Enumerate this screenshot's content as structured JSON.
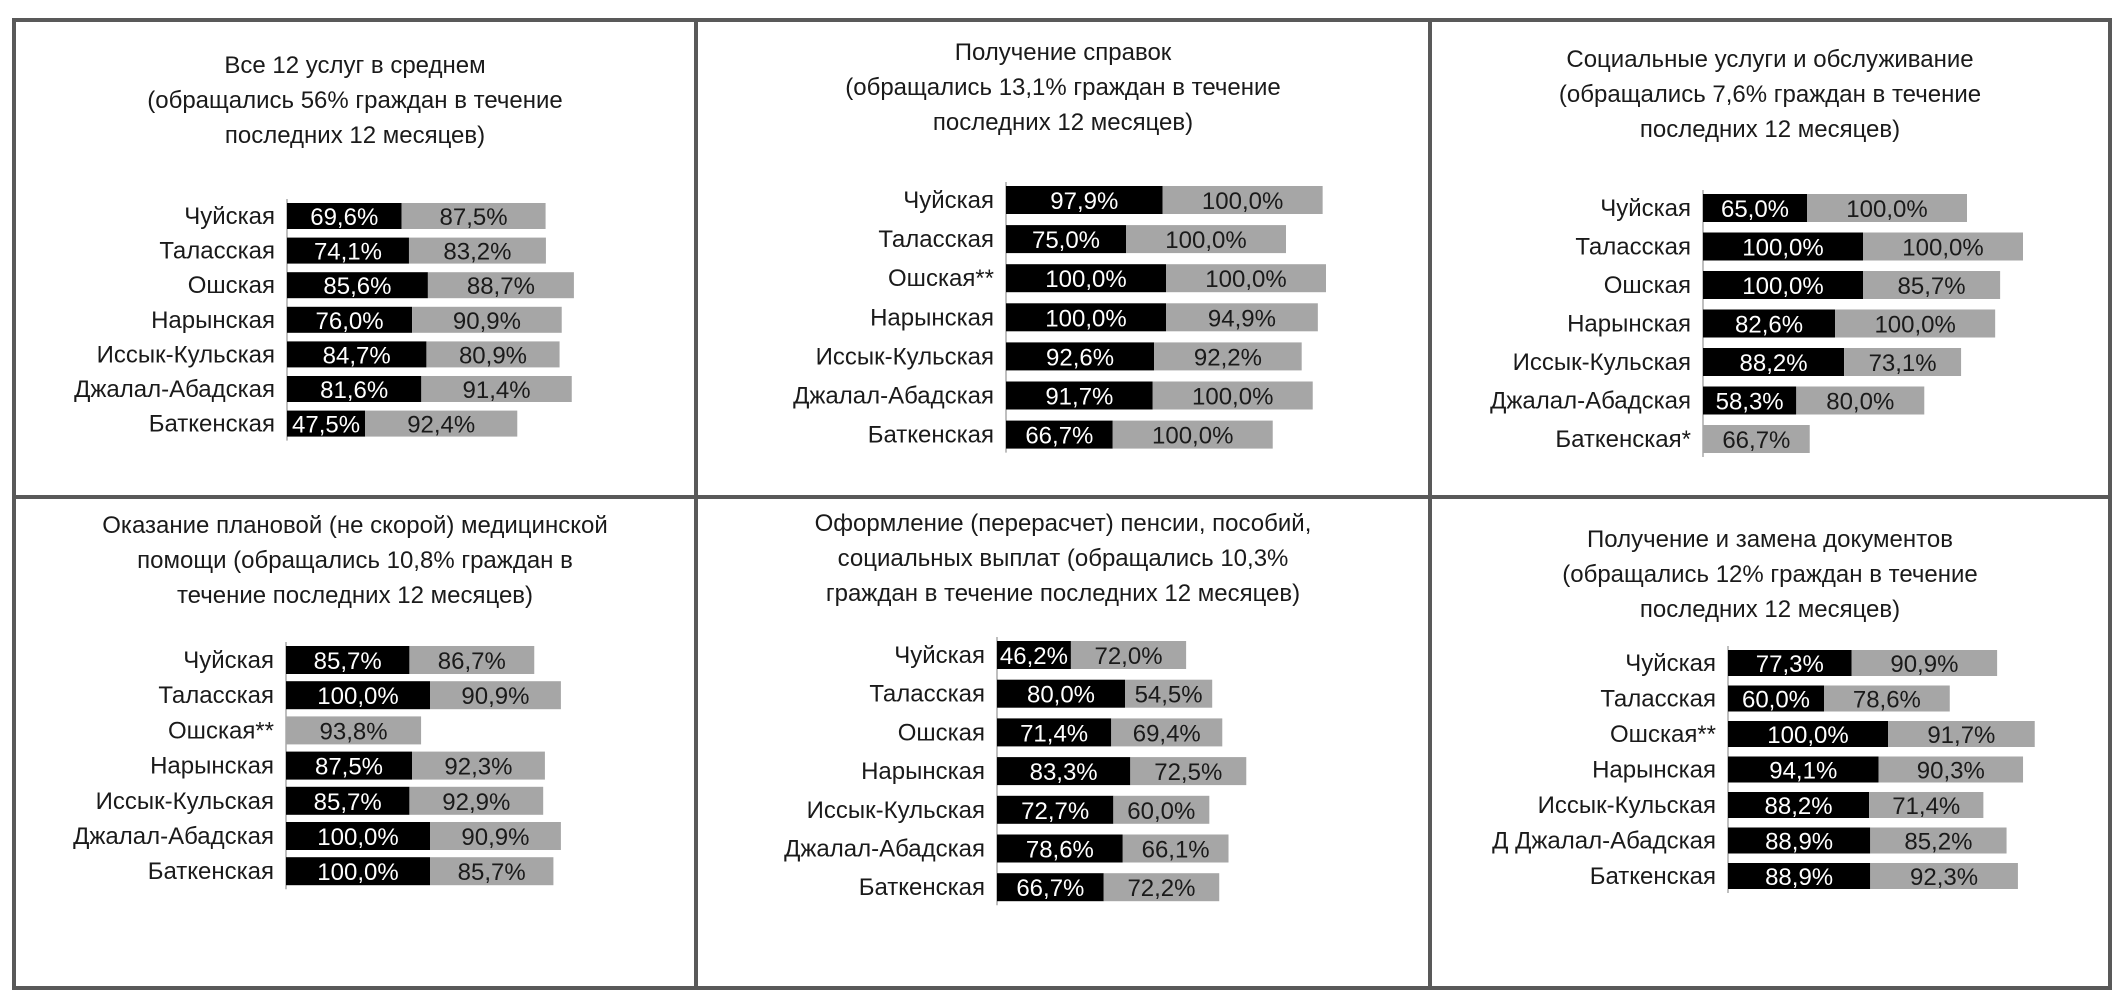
{
  "chart_data": [
    {
      "type": "bar",
      "title_lines": [
        "Все 12 услуг в среднем",
        "(обращались 56% граждан в течение",
        "последних 12 месяцев)"
      ],
      "categories": [
        "Чуйская",
        "Таласская",
        "Ошская",
        "Нарынская",
        "Иссык-Кульская",
        "Джалал-Абадская",
        "Баткенская"
      ],
      "series": [
        {
          "color": "#000000",
          "values": [
            69.6,
            74.1,
            85.6,
            76.0,
            84.7,
            81.6,
            47.5
          ],
          "labels": [
            "69,6%",
            "74,1%",
            "85,6%",
            "76,0%",
            "84,7%",
            "81,6%",
            "47,5%"
          ]
        },
        {
          "color": "#a6a6a6",
          "values": [
            87.5,
            83.2,
            88.7,
            90.9,
            80.9,
            91.4,
            92.4
          ],
          "labels": [
            "87,5%",
            "83,2%",
            "88,7%",
            "90,9%",
            "80,9%",
            "91,4%",
            "92,4%"
          ]
        }
      ]
    },
    {
      "type": "bar",
      "title_lines": [
        "Получение справок",
        "(обращались 13,1% граждан в течение",
        "последних 12 месяцев)"
      ],
      "categories": [
        "Чуйская",
        "Таласская",
        "Ошская**",
        "Нарынская",
        "Иссык-Кульская",
        "Джалал-Абадская",
        "Баткенская"
      ],
      "series": [
        {
          "color": "#000000",
          "values": [
            97.9,
            75.0,
            100.0,
            100.0,
            92.6,
            91.7,
            66.7
          ],
          "labels": [
            "97,9%",
            "75,0%",
            "100,0%",
            "100,0%",
            "92,6%",
            "91,7%",
            "66,7%"
          ]
        },
        {
          "color": "#a6a6a6",
          "values": [
            100.0,
            100.0,
            100.0,
            94.9,
            92.2,
            100.0,
            100.0
          ],
          "labels": [
            "100,0%",
            "100,0%",
            "100,0%",
            "94,9%",
            "92,2%",
            "100,0%",
            "100,0%"
          ]
        }
      ]
    },
    {
      "type": "bar",
      "title_lines": [
        "Социальные услуги и обслуживание",
        "(обращались 7,6% граждан в течение",
        "последних 12 месяцев)"
      ],
      "categories": [
        "Чуйская",
        "Таласская",
        "Ошская",
        "Нарынская",
        "Иссык-Кульская",
        "Джалал-Абадская",
        "Баткенская*"
      ],
      "series": [
        {
          "color": "#000000",
          "values": [
            65.0,
            100.0,
            100.0,
            82.6,
            88.2,
            58.3,
            null
          ],
          "labels": [
            "65,0%",
            "100,0%",
            "100,0%",
            "82,6%",
            "88,2%",
            "58,3%",
            ""
          ]
        },
        {
          "color": "#a6a6a6",
          "values": [
            100.0,
            100.0,
            85.7,
            100.0,
            73.1,
            80.0,
            66.7
          ],
          "labels": [
            "100,0%",
            "100,0%",
            "85,7%",
            "100,0%",
            "73,1%",
            "80,0%",
            "66,7%"
          ]
        }
      ]
    },
    {
      "type": "bar",
      "title_lines": [
        "Оказание плановой (не скорой) медицинской",
        "помощи (обращались 10,8% граждан в",
        "течение последних 12 месяцев)"
      ],
      "categories": [
        "Чуйская",
        "Таласская",
        "Ошская**",
        "Нарынская",
        "Иссык-Кульская",
        "Джалал-Абадская",
        "Баткенская"
      ],
      "series": [
        {
          "color": "#000000",
          "values": [
            85.7,
            100.0,
            null,
            87.5,
            85.7,
            100.0,
            100.0
          ],
          "labels": [
            "85,7%",
            "100,0%",
            "",
            "87,5%",
            "85,7%",
            "100,0%",
            "100,0%"
          ]
        },
        {
          "color": "#a6a6a6",
          "values": [
            86.7,
            90.9,
            93.8,
            92.3,
            92.9,
            90.9,
            85.7
          ],
          "labels": [
            "86,7%",
            "90,9%",
            "93,8%",
            "92,3%",
            "92,9%",
            "90,9%",
            "85,7%"
          ]
        }
      ]
    },
    {
      "type": "bar",
      "title_lines": [
        "Оформление (перерасчет) пенсии, пособий,",
        "социальных выплат (обращались 10,3%",
        "граждан в течение последних 12 месяцев)"
      ],
      "categories": [
        "Чуйская",
        "Таласская",
        "Ошская",
        "Нарынская",
        "Иссык-Кульская",
        "Джалал-Абадская",
        "Баткенская"
      ],
      "series": [
        {
          "color": "#000000",
          "values": [
            46.2,
            80.0,
            71.4,
            83.3,
            72.7,
            78.6,
            66.7
          ],
          "labels": [
            "46,2%",
            "80,0%",
            "71,4%",
            "83,3%",
            "72,7%",
            "78,6%",
            "66,7%"
          ]
        },
        {
          "color": "#a6a6a6",
          "values": [
            72.0,
            54.5,
            69.4,
            72.5,
            60.0,
            66.1,
            72.2
          ],
          "labels": [
            "72,0%",
            "54,5%",
            "69,4%",
            "72,5%",
            "60,0%",
            "66,1%",
            "72,2%"
          ]
        }
      ]
    },
    {
      "type": "bar",
      "title_lines": [
        "Получение и замена документов",
        "(обращались 12% граждан в течение",
        "последних 12 месяцев)"
      ],
      "categories": [
        "Чуйская",
        "Таласская",
        "Ошская**",
        "Нарынская",
        "Иссык-Кульская",
        "Д Джалал-Абадская",
        "Баткенская"
      ],
      "series": [
        {
          "color": "#000000",
          "values": [
            77.3,
            60.0,
            100.0,
            94.1,
            88.2,
            88.9,
            88.9
          ],
          "labels": [
            "77,3%",
            "60,0%",
            "100,0%",
            "94,1%",
            "88,2%",
            "88,9%",
            "88,9%"
          ]
        },
        {
          "color": "#a6a6a6",
          "values": [
            90.9,
            78.6,
            91.7,
            90.3,
            71.4,
            85.2,
            92.3
          ],
          "labels": [
            "90,9%",
            "78,6%",
            "91,7%",
            "90,3%",
            "71,4%",
            "85,2%",
            "92,3%"
          ]
        }
      ]
    }
  ]
}
